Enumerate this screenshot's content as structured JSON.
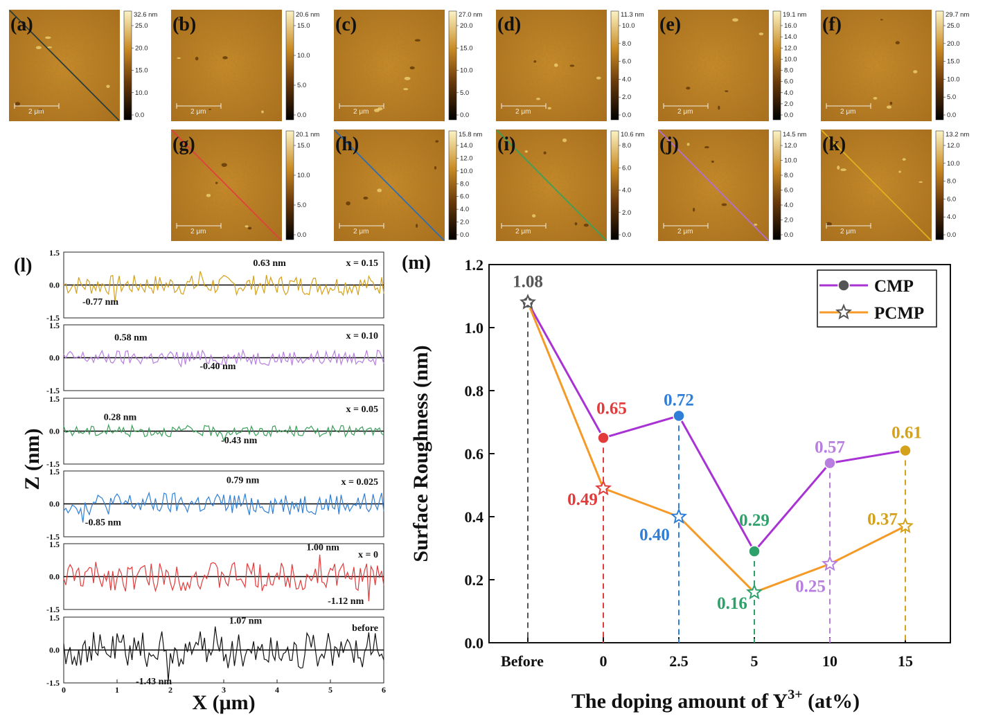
{
  "afm_maps": [
    {
      "label": "(a)",
      "colorbar": {
        "max_label": "32.6 nm",
        "ticks": [
          "25.0",
          "20.0",
          "15.0",
          "10.0",
          "0.0"
        ]
      },
      "scale_bar": "2 μm",
      "line_color": "#2b3d3a"
    },
    {
      "label": "(b)",
      "colorbar": {
        "max_label": "20.6 nm",
        "ticks": [
          "15.0",
          "10.0",
          "5.0",
          "0.0"
        ]
      },
      "scale_bar": "2 μm",
      "line_color": ""
    },
    {
      "label": "(c)",
      "colorbar": {
        "max_label": "27.0 nm",
        "ticks": [
          "20.0",
          "15.0",
          "10.0",
          "5.0",
          "0.0"
        ]
      },
      "scale_bar": "2 μm",
      "line_color": ""
    },
    {
      "label": "(d)",
      "colorbar": {
        "max_label": "11.3 nm",
        "ticks": [
          "10.0",
          "8.0",
          "6.0",
          "4.0",
          "2.0",
          "0.0"
        ]
      },
      "scale_bar": "2 μm",
      "line_color": ""
    },
    {
      "label": "(e)",
      "colorbar": {
        "max_label": "19.1 nm",
        "ticks": [
          "16.0",
          "14.0",
          "12.0",
          "10.0",
          "8.0",
          "6.0",
          "4.0",
          "2.0",
          "0.0"
        ]
      },
      "scale_bar": "2 μm",
      "line_color": ""
    },
    {
      "label": "(f)",
      "colorbar": {
        "max_label": "29.7 nm",
        "ticks": [
          "25.0",
          "20.0",
          "15.0",
          "10.0",
          "5.0",
          "0.0"
        ]
      },
      "scale_bar": "2 μm",
      "line_color": ""
    },
    {
      "label": "(g)",
      "colorbar": {
        "max_label": "20.1 nm",
        "ticks": [
          "15.0",
          "10.0",
          "5.0",
          "0.0"
        ]
      },
      "scale_bar": "2 μm",
      "line_color": "#e04040"
    },
    {
      "label": "(h)",
      "colorbar": {
        "max_label": "15.8 nm",
        "ticks": [
          "14.0",
          "12.0",
          "10.0",
          "8.0",
          "6.0",
          "4.0",
          "2.0",
          "0.0"
        ]
      },
      "scale_bar": "2 μm",
      "line_color": "#2c6cb4"
    },
    {
      "label": "(i)",
      "colorbar": {
        "max_label": "10.6 nm",
        "ticks": [
          "8.0",
          "6.0",
          "4.0",
          "2.0",
          "0.0"
        ]
      },
      "scale_bar": "2 μm",
      "line_color": "#3aa05a"
    },
    {
      "label": "(j)",
      "colorbar": {
        "max_label": "14.5 nm",
        "ticks": [
          "12.0",
          "10.0",
          "8.0",
          "6.0",
          "4.0",
          "2.0",
          "0.0"
        ]
      },
      "scale_bar": "2 μm",
      "line_color": "#b070d0"
    },
    {
      "label": "(k)",
      "colorbar": {
        "max_label": "13.2 nm",
        "ticks": [
          "12.0",
          "10.0",
          "8.0",
          "6.0",
          "4.0",
          "0.0"
        ]
      },
      "scale_bar": "2 μm",
      "line_color": "#e0b020"
    }
  ],
  "chart_data": [
    {
      "type": "line",
      "panel_label": "(l)",
      "xlabel": "X (μm)",
      "ylabel": "Z (nm)",
      "xlim": [
        0,
        6
      ],
      "x_ticks": [
        "0",
        "1",
        "2",
        "3",
        "4",
        "5",
        "6"
      ],
      "ylim": [
        -1.5,
        1.5
      ],
      "y_ticks": [
        "1.5",
        "0.0",
        "-1.5"
      ],
      "series": [
        {
          "name": "x = 0.15",
          "color": "#d4a21a",
          "max_label": "0.63 nm",
          "min_label": "-0.77 nm",
          "max": 0.63,
          "min": -0.77
        },
        {
          "name": "x = 0.10",
          "color": "#b77ee0",
          "max_label": "0.58 nm",
          "min_label": "-0.40 nm",
          "max": 0.58,
          "min": -0.4
        },
        {
          "name": "x = 0.05",
          "color": "#3aa05a",
          "max_label": "0.28 nm",
          "min_label": "-0.43 nm",
          "max": 0.28,
          "min": -0.43
        },
        {
          "name": "x = 0.025",
          "color": "#2f7fd8",
          "max_label": "0.79 nm",
          "min_label": "-0.85 nm",
          "max": 0.79,
          "min": -0.85
        },
        {
          "name": "x = 0",
          "color": "#e23b3b",
          "max_label": "1.00 nm",
          "min_label": "-1.12 nm",
          "max": 1.0,
          "min": -1.12
        },
        {
          "name": "before",
          "color": "#111111",
          "max_label": "1.07 nm",
          "min_label": "-1.43 nm",
          "max": 1.07,
          "min": -1.43
        }
      ]
    },
    {
      "type": "line",
      "panel_label": "(m)",
      "xlabel": "The doping amount of Y",
      "xlabel_sup": "3+",
      "xlabel_suffix": " (at%)",
      "ylabel": "Surface Roughness (nm)",
      "categories": [
        "Before",
        "0",
        "2.5",
        "5",
        "10",
        "15"
      ],
      "ylim": [
        0,
        1.2
      ],
      "y_ticks": [
        "0.0",
        "0.2",
        "0.4",
        "0.6",
        "0.8",
        "1.0",
        "1.2"
      ],
      "legend_position": "top-right",
      "series": [
        {
          "name": "CMP",
          "color": "#a832d4",
          "values": [
            1.08,
            0.65,
            0.72,
            0.29,
            0.57,
            0.61
          ],
          "labels": [
            "1.08",
            "0.65",
            "0.72",
            "0.29",
            "0.57",
            "0.61"
          ]
        },
        {
          "name": "PCMP",
          "color": "#f59a26",
          "values": [
            1.08,
            0.49,
            0.4,
            0.16,
            0.25,
            0.37
          ],
          "labels": [
            "",
            "0.49",
            "0.40",
            "0.16",
            "0.25",
            "0.37"
          ]
        }
      ],
      "point_colors": [
        "#555555",
        "#e23b3b",
        "#2f7fd8",
        "#2ea06a",
        "#b77ee0",
        "#d4a21a"
      ]
    }
  ]
}
